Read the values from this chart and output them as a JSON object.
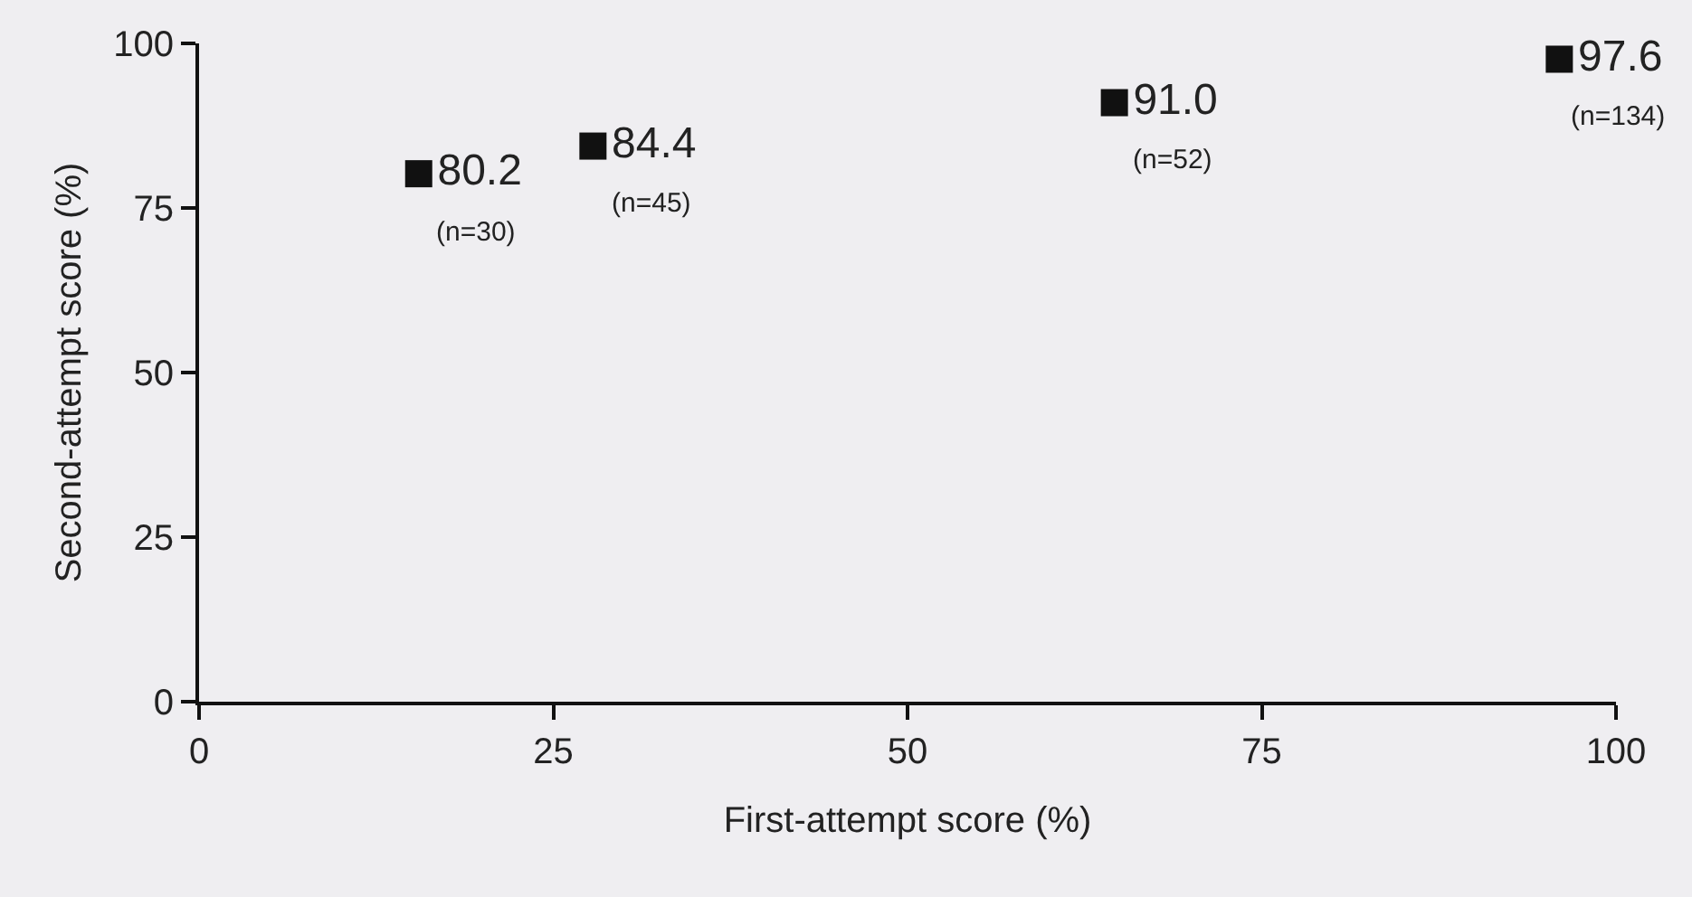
{
  "chart_data": {
    "type": "scatter",
    "xlabel": "First-attempt score (%)",
    "ylabel": "Second-attempt score (%)",
    "x": [
      15.5,
      27.8,
      64.6,
      96.0
    ],
    "values": [
      80.2,
      84.4,
      91.0,
      97.6
    ],
    "value_labels": [
      "80.2",
      "84.4",
      "91.0",
      "97.6"
    ],
    "color": "#111111",
    "marker": "square",
    "grid": false,
    "legend": false,
    "xlim": [
      0,
      100
    ],
    "xticks": [
      0,
      25,
      50,
      75,
      100
    ],
    "ylim": [
      0,
      100
    ],
    "yticks": [
      0,
      25,
      50,
      75,
      100
    ],
    "annotations": [
      {
        "text": "(n=30)",
        "x": 15.5,
        "y": 80.2
      },
      {
        "text": "(n=45)",
        "x": 27.8,
        "y": 84.4
      },
      {
        "text": "(n=52)",
        "x": 64.6,
        "y": 91.0
      },
      {
        "text": "(n=134)",
        "x": 96.0,
        "y": 97.6
      }
    ]
  }
}
